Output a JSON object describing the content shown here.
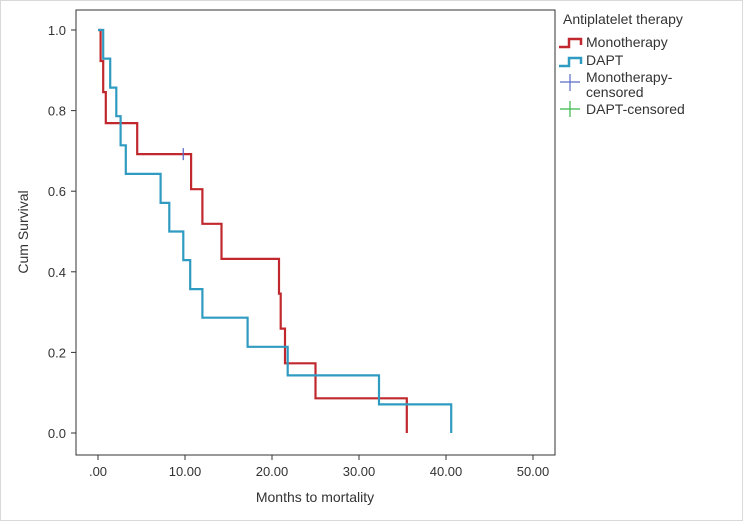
{
  "chart_data": {
    "type": "line",
    "subtype": "kaplan-meier",
    "xlabel": "Months to mortality",
    "ylabel": "Cum Survival",
    "xlim": [
      0,
      50
    ],
    "ylim": [
      0,
      1
    ],
    "x_ticks": [
      0,
      10,
      20,
      30,
      40,
      50
    ],
    "x_tick_labels": [
      ".00",
      "10.00",
      "20.00",
      "30.00",
      "40.00",
      "50.00"
    ],
    "y_ticks": [
      0,
      0.2,
      0.4,
      0.6,
      0.8,
      1.0
    ],
    "y_tick_labels": [
      "0.0",
      "0.2",
      "0.4",
      "0.6",
      "0.8",
      "1.0"
    ],
    "legend": {
      "title": "Antiplatelet therapy",
      "position": "right",
      "entries": [
        {
          "label": "Monotherapy",
          "kind": "step",
          "color": "#c0282d"
        },
        {
          "label": "DAPT",
          "kind": "step",
          "color": "#2f9bc1"
        },
        {
          "label": "Monotherapy-censored",
          "line1": "Monotherapy-",
          "line2": "censored",
          "kind": "censor",
          "color": "#5c6cc4"
        },
        {
          "label": "DAPT-censored",
          "kind": "censor",
          "color": "#38b84a"
        }
      ]
    },
    "series": [
      {
        "name": "Monotherapy",
        "color": "#c0282d",
        "x": [
          0,
          0.3,
          0.6,
          0.9,
          4.5,
          10.7,
          12.0,
          14.2,
          20.8,
          21.0,
          21.5,
          22.0,
          25.0,
          35.5,
          35.5
        ],
        "y": [
          1.0,
          0.923,
          0.846,
          0.769,
          0.692,
          0.605,
          0.519,
          0.432,
          0.346,
          0.259,
          0.173,
          0.173,
          0.086,
          0.0,
          0.0
        ],
        "censored": [
          {
            "x": 9.8,
            "y": 0.692
          }
        ]
      },
      {
        "name": "DAPT",
        "color": "#2f9bc1",
        "x": [
          0,
          0.6,
          1.4,
          2.1,
          2.6,
          3.2,
          7.2,
          8.2,
          9.8,
          10.6,
          12.0,
          17.2,
          21.8,
          32.3,
          40.6,
          40.6
        ],
        "y": [
          1.0,
          0.929,
          0.857,
          0.786,
          0.714,
          0.643,
          0.571,
          0.5,
          0.429,
          0.357,
          0.286,
          0.214,
          0.143,
          0.071,
          0.0,
          0.0
        ],
        "censored": []
      }
    ]
  }
}
